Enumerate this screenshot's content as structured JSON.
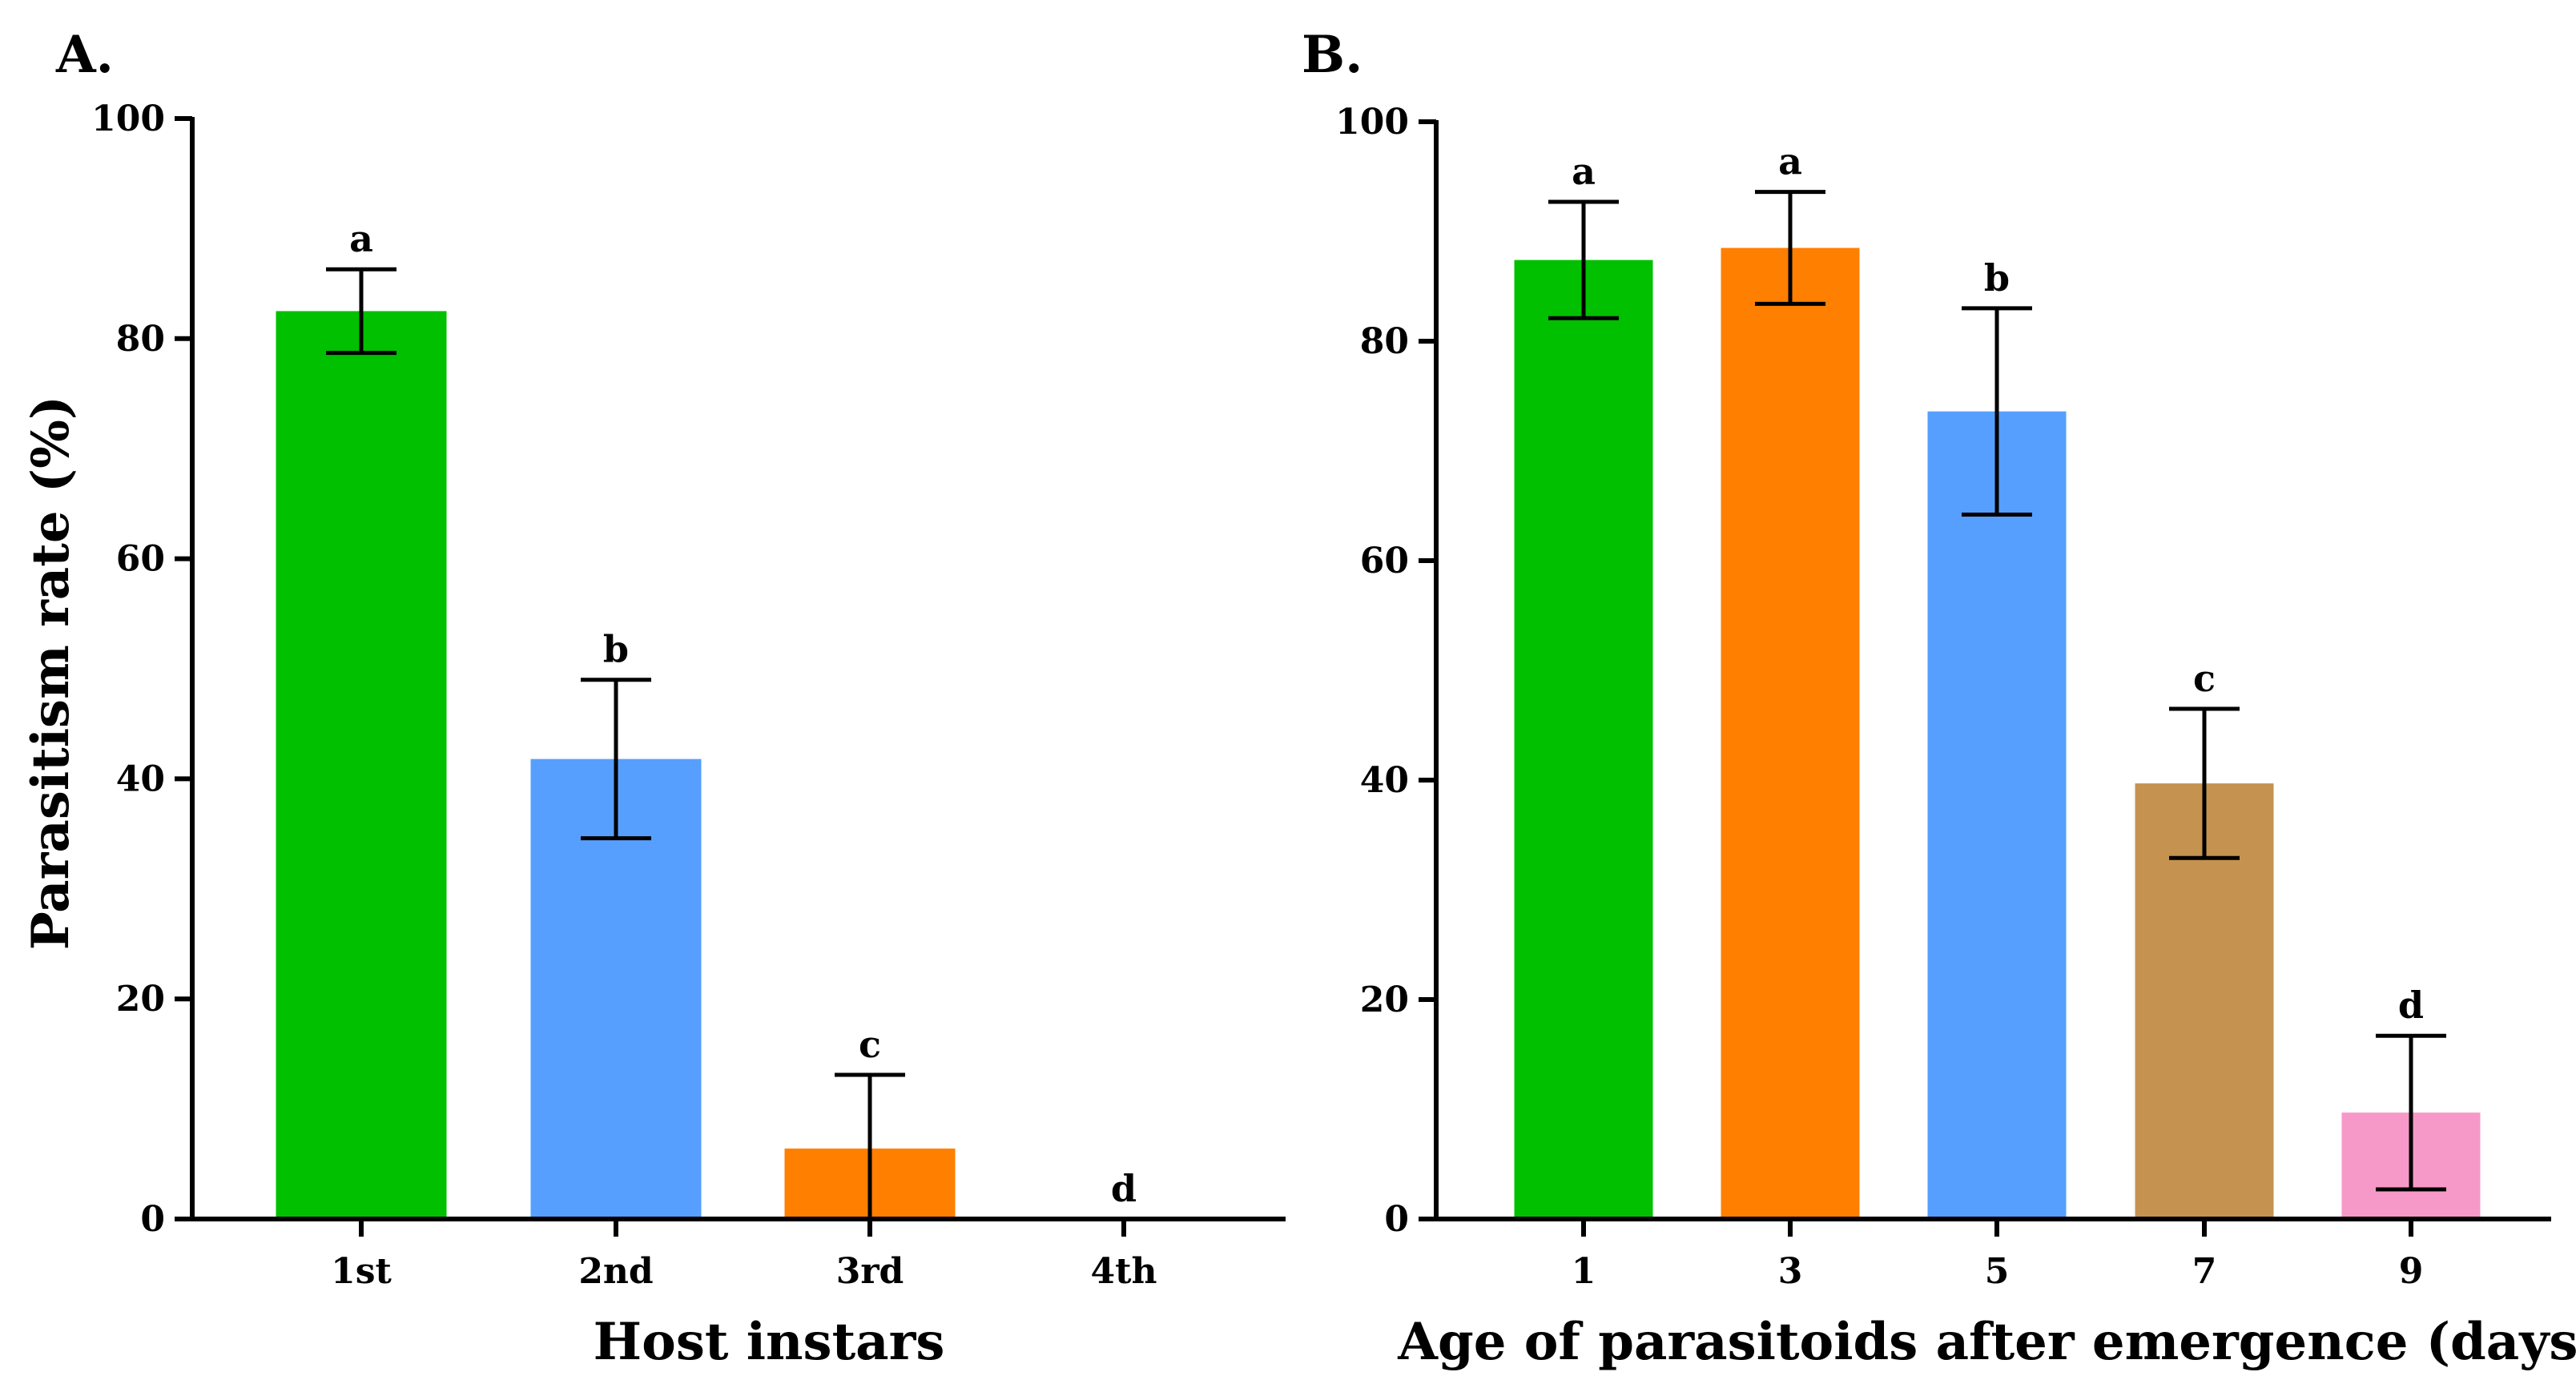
{
  "chart_data": [
    {
      "panel_label": "A.",
      "type": "bar",
      "title": "",
      "xlabel": "Host instars",
      "ylabel": "Parasitism rate (%)",
      "ylim": [
        0,
        100
      ],
      "yticks": [
        "0",
        "20",
        "40",
        "60",
        "80",
        "100"
      ],
      "grid": false,
      "categories": [
        "1st",
        "2nd",
        "3rd",
        "4th"
      ],
      "values": [
        82.5,
        41.8,
        6.4,
        0
      ],
      "errors": [
        3.8,
        7.2,
        6.7,
        0
      ],
      "letters": [
        "a",
        "b",
        "c",
        "d"
      ],
      "colors": [
        "#00C000",
        "#569FFF",
        "#FF7F00",
        "#000000"
      ]
    },
    {
      "panel_label": "B.",
      "type": "bar",
      "title": "",
      "xlabel": "Age of parasitoids after emergence (days)",
      "ylabel": "",
      "ylim": [
        0,
        100
      ],
      "yticks": [
        "0",
        "20",
        "40",
        "60",
        "80",
        "100"
      ],
      "grid": false,
      "categories": [
        "1",
        "3",
        "5",
        "7",
        "9"
      ],
      "values": [
        87.4,
        88.5,
        73.6,
        39.7,
        9.7
      ],
      "errors": [
        5.3,
        5.1,
        9.4,
        6.8,
        7.0
      ],
      "letters": [
        "a",
        "a",
        "b",
        "c",
        "d"
      ],
      "colors": [
        "#00C000",
        "#FF7F00",
        "#569FFF",
        "#C5934F",
        "#F799C8"
      ]
    }
  ]
}
